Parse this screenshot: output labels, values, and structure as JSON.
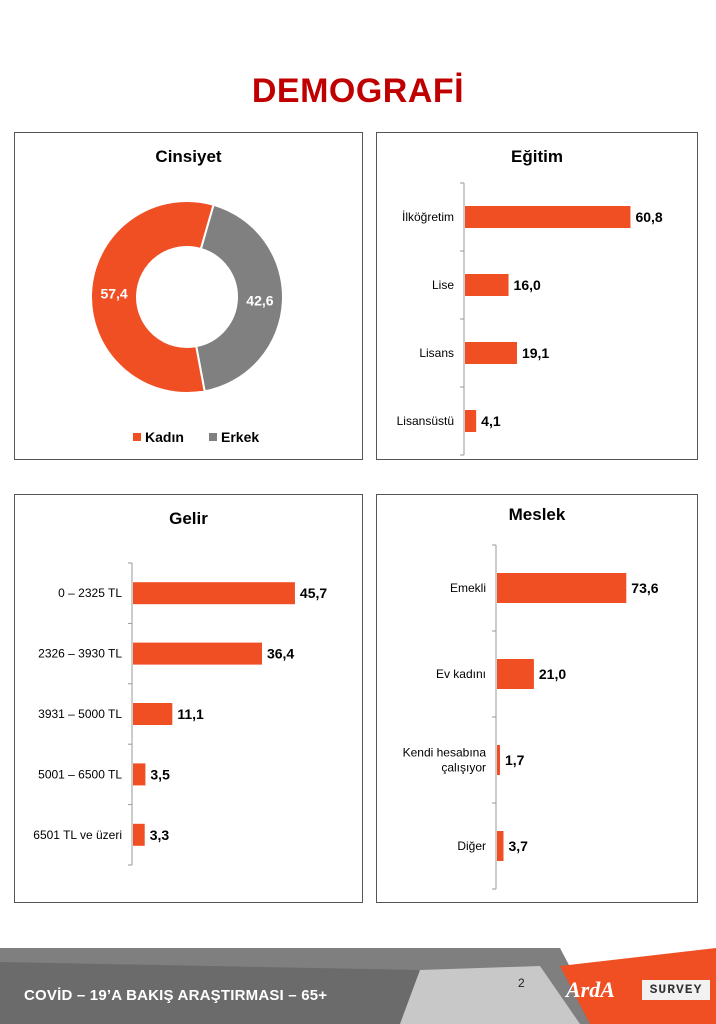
{
  "page": {
    "title": "DEMOGRAFİ",
    "footer_text": "COVİD – 19’A  BAKIŞ ARAŞTIRMASI – 65+",
    "page_number": "2",
    "logo_primary": "ArdA",
    "logo_secondary": "SURVEY",
    "accent_color": "#f04e23",
    "grey_color": "#808080"
  },
  "chart_data": [
    {
      "type": "pie",
      "title": "Cinsiyet",
      "categories": [
        "Kadın",
        "Erkek"
      ],
      "values": [
        57.4,
        42.6
      ],
      "value_labels": [
        "57,4",
        "42,6"
      ],
      "colors": [
        "#f04e23",
        "#808080"
      ],
      "legend": "bottom"
    },
    {
      "type": "bar",
      "orientation": "horizontal",
      "title": "Eğitim",
      "categories": [
        "İlköğretim",
        "Lise",
        "Lisans",
        "Lisansüstü"
      ],
      "values": [
        60.8,
        16.0,
        19.1,
        4.1
      ],
      "value_labels": [
        "60,8",
        "16,0",
        "19,1",
        "4,1"
      ],
      "xlim": [
        0,
        61
      ]
    },
    {
      "type": "bar",
      "orientation": "horizontal",
      "title": "Gelir",
      "categories": [
        "0 – 2325 TL",
        "2326 – 3930 TL",
        "3931 – 5000 TL",
        "5001 – 6500 TL",
        "6501 TL ve üzeri"
      ],
      "values": [
        45.7,
        36.4,
        11.1,
        3.5,
        3.3
      ],
      "value_labels": [
        "45,7",
        "36,4",
        "11,1",
        "3,5",
        "3,3"
      ],
      "xlim": [
        0,
        46
      ]
    },
    {
      "type": "bar",
      "orientation": "horizontal",
      "title": "Meslek",
      "categories": [
        "Emekli",
        "Ev kadını",
        "Kendi hesabına çalışıyor",
        "Diğer"
      ],
      "values": [
        73.6,
        21.0,
        1.7,
        3.7
      ],
      "value_labels": [
        "73,6",
        "21,0",
        "1,7",
        "3,7"
      ],
      "xlim": [
        0,
        74
      ]
    }
  ]
}
